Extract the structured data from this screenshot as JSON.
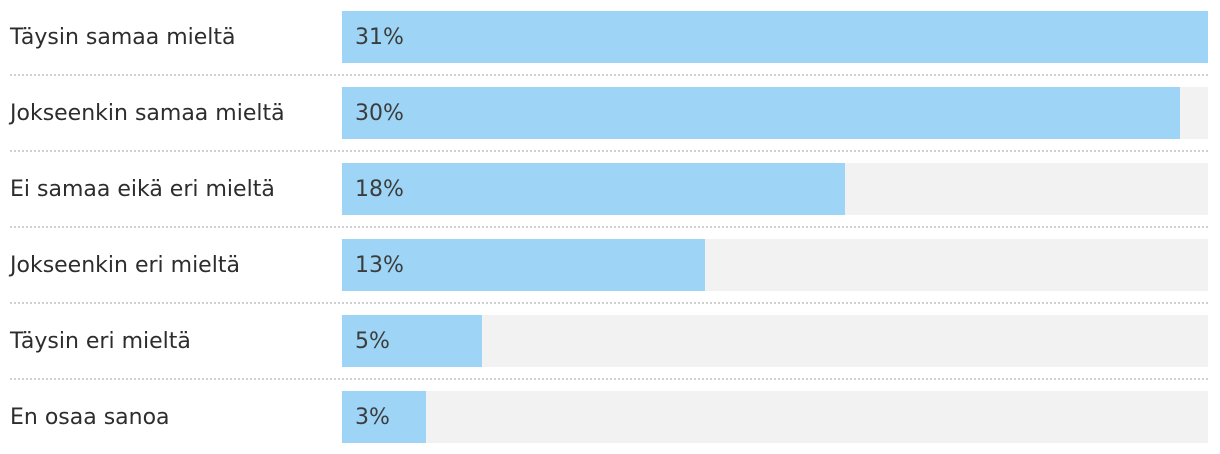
{
  "chart_data": {
    "type": "bar",
    "orientation": "horizontal",
    "title": "",
    "xlabel": "",
    "ylabel": "",
    "categories": [
      "Täysin samaa mieltä",
      "Jokseenkin samaa mieltä",
      "Ei samaa eikä eri mieltä",
      "Jokseenkin eri mieltä",
      "Täysin eri mieltä",
      "En osaa sanoa"
    ],
    "values": [
      31,
      30,
      18,
      13,
      5,
      3
    ],
    "value_labels": [
      "31%",
      "30%",
      "18%",
      "13%",
      "5%",
      "3%"
    ],
    "xlim": [
      0,
      31
    ],
    "grid": false,
    "legend": false,
    "bar_color": "#9ed5f6",
    "track_color": "#f2f2f2",
    "label_color": "#2d2d2d",
    "value_color": "#3c3c3c",
    "divider_color": "#d0d0d0"
  }
}
